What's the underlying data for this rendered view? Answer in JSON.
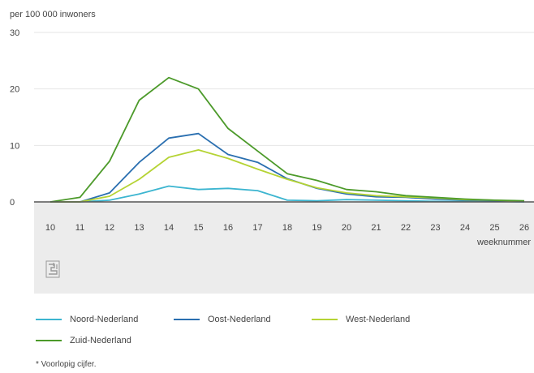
{
  "chart_data": {
    "type": "line",
    "ylabel": "per 100 000 inwoners",
    "xlabel": "weeknummer",
    "ylim": [
      0,
      30
    ],
    "yticks": [
      0,
      10,
      20,
      30
    ],
    "xlim": [
      10,
      26
    ],
    "x": [
      10,
      11,
      12,
      13,
      14,
      15,
      16,
      17,
      18,
      19,
      20,
      21,
      22,
      23,
      24,
      25,
      26
    ],
    "grid": true,
    "legend_position": "bottom",
    "series": [
      {
        "name": "Noord-Nederland",
        "color": "#3cb5d0",
        "values": [
          0,
          0,
          0.3,
          1.4,
          2.8,
          2.2,
          2.4,
          2.0,
          0.3,
          0.2,
          0.4,
          0.3,
          0.2,
          0.1,
          0.1,
          0.1,
          0
        ]
      },
      {
        "name": "Oost-Nederland",
        "color": "#2a6fb0",
        "values": [
          0,
          0,
          1.6,
          7.0,
          11.3,
          12.1,
          8.4,
          7.0,
          4.1,
          2.4,
          1.4,
          0.9,
          0.8,
          0.5,
          0.3,
          0.2,
          0.1
        ]
      },
      {
        "name": "West-Nederland",
        "color": "#b5d334",
        "values": [
          0,
          0,
          1.0,
          4.0,
          7.9,
          9.2,
          7.7,
          5.8,
          4.0,
          2.5,
          1.6,
          1.1,
          0.9,
          0.7,
          0.4,
          0.3,
          0.1
        ]
      },
      {
        "name": "Zuid-Nederland",
        "color": "#4c9a2a",
        "values": [
          0,
          0.8,
          7.2,
          18.0,
          22.0,
          20.0,
          13.0,
          9.0,
          5.0,
          3.8,
          2.2,
          1.8,
          1.1,
          0.8,
          0.5,
          0.3,
          0.2
        ]
      }
    ]
  },
  "footnote": "* Voorlopig cijfer.",
  "logo_icon": "cbs-logo-icon"
}
